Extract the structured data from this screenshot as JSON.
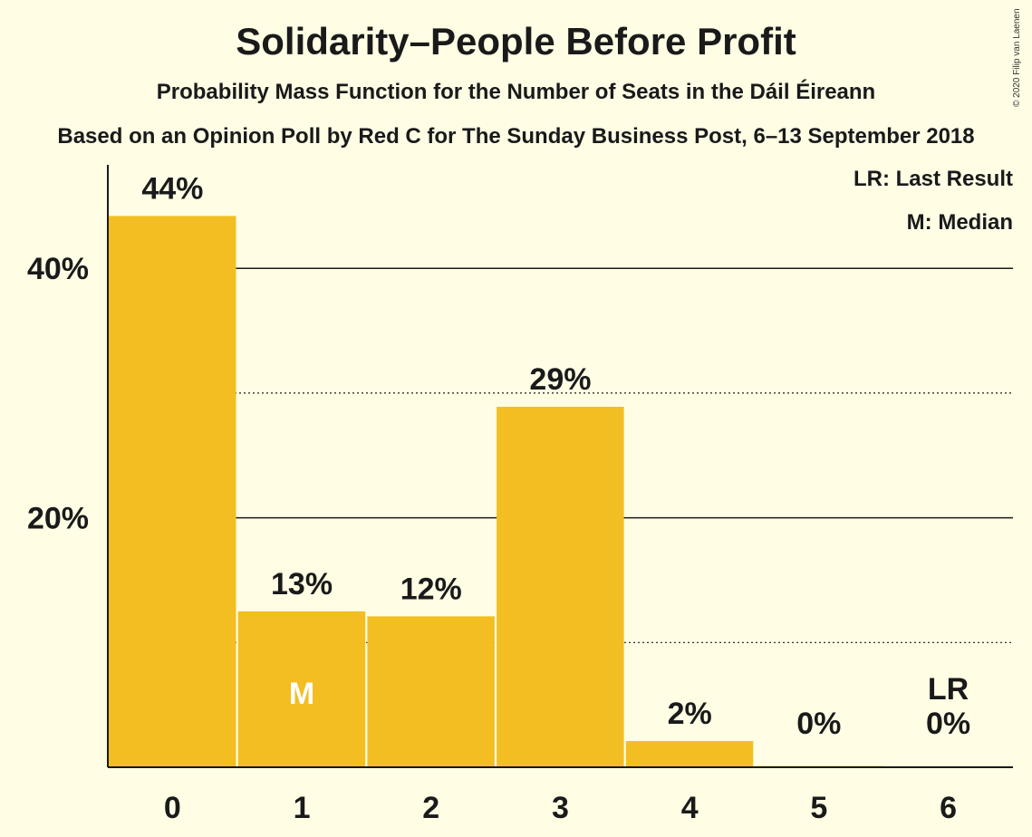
{
  "title": "Solidarity–People Before Profit",
  "subtitle": "Probability Mass Function for the Number of Seats in the Dáil Éireann",
  "source": "Based on an Opinion Poll by Red C for The Sunday Business Post, 6–13 September 2018",
  "copyright": "© 2020 Filip van Laenen",
  "legend": {
    "last_result": "LR: Last Result",
    "median": "M: Median"
  },
  "colors": {
    "background": "#FFFEE5",
    "bar": "#F3BE22",
    "text": "#1a1a1a"
  },
  "chart_data": {
    "type": "bar",
    "categories": [
      "0",
      "1",
      "2",
      "3",
      "4",
      "5",
      "6"
    ],
    "values": [
      44.2,
      12.5,
      12.1,
      28.9,
      2.1,
      0.1,
      0.05
    ],
    "labels": [
      "44%",
      "13%",
      "12%",
      "29%",
      "2%",
      "0%",
      "0%"
    ],
    "ylim": [
      0,
      48
    ],
    "yticks": [
      {
        "value": 40,
        "label": "40%",
        "style": "solid"
      },
      {
        "value": 30,
        "label": "",
        "style": "dotted"
      },
      {
        "value": 20,
        "label": "20%",
        "style": "solid"
      },
      {
        "value": 10,
        "label": "",
        "style": "dotted"
      }
    ],
    "markers": {
      "median": {
        "category": "1",
        "label": "M"
      },
      "last_result": {
        "category": "6",
        "label": "LR"
      }
    },
    "grid": true,
    "legend_position": "top-right"
  }
}
